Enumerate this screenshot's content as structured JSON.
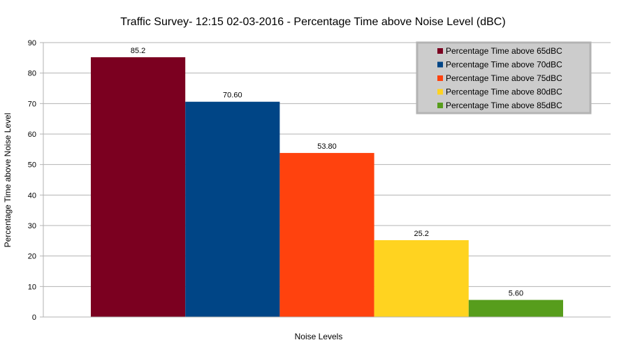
{
  "chart_data": {
    "type": "bar",
    "title": "Traffic Survey- 12:15 02-03-2016 - Percentage Time above Noise Level (dBC)",
    "xlabel": "Noise Levels",
    "ylabel": "Percentage Time above Noise Level",
    "ylim": [
      0,
      90
    ],
    "yticks": [
      0,
      10,
      20,
      30,
      40,
      50,
      60,
      70,
      80,
      90
    ],
    "grid": true,
    "legend_position": "top-right",
    "series": [
      {
        "name": "Percentage Time above 65dBC",
        "value": 85.2,
        "label": "85.2",
        "color": "#7b0020"
      },
      {
        "name": "Percentage Time above 70dBC",
        "value": 70.6,
        "label": "70.60",
        "color": "#004586"
      },
      {
        "name": "Percentage Time above 75dBC",
        "value": 53.8,
        "label": "53.80",
        "color": "#ff420e"
      },
      {
        "name": "Percentage Time above 80dBC",
        "value": 25.2,
        "label": "25.2",
        "color": "#ffd320"
      },
      {
        "name": "Percentage Time above 85dBC",
        "value": 5.6,
        "label": "5.60",
        "color": "#579d1c"
      }
    ]
  }
}
